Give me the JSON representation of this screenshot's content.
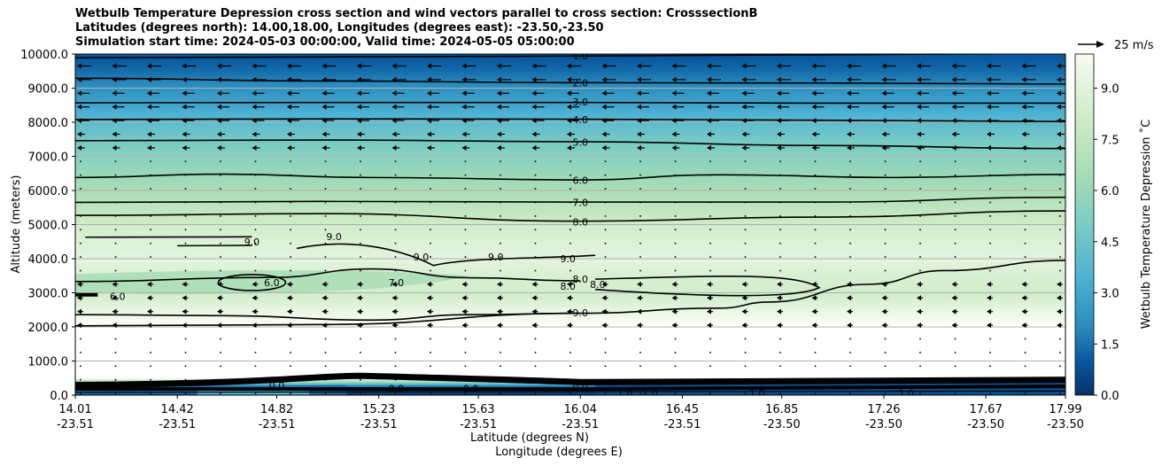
{
  "chart_data": {
    "type": "heatmap",
    "title_lines": [
      "Wetbulb Temperature Depression cross section and wind vectors parallel to cross section: CrosssectionB",
      "Latitudes (degrees north): 14.00,18.00, Longitudes (degrees east): -23.50,-23.50",
      "Simulation start time: 2024-05-03 00:00:00, Valid time: 2024-05-05 05:00:00"
    ],
    "ylabel": "Altitude (meters)",
    "xlabel": "Latitude (degrees N)",
    "xlabel2": "Longitude (degrees E)",
    "ylim": [
      0,
      10000
    ],
    "y_ticks": [
      0,
      1000,
      2000,
      3000,
      4000,
      5000,
      6000,
      7000,
      8000,
      9000,
      10000
    ],
    "y_tick_labels": [
      "0.0",
      "1000.0",
      "2000.0",
      "3000.0",
      "4000.0",
      "5000.0",
      "6000.0",
      "7000.0",
      "8000.0",
      "9000.0",
      "10000.0"
    ],
    "xlim": [
      14.01,
      17.99
    ],
    "x_ticks_lat": [
      "14.01",
      "14.42",
      "14.82",
      "15.23",
      "15.63",
      "16.04",
      "16.45",
      "16.85",
      "17.26",
      "17.67",
      "17.99"
    ],
    "x_ticks_lon": [
      "-23.51",
      "-23.51",
      "-23.51",
      "-23.51",
      "-23.51",
      "-23.51",
      "-23.51",
      "-23.50",
      "-23.50",
      "-23.50",
      "-23.50"
    ],
    "colorbar": {
      "label": "Wetbulb Temperature Depression ˚C",
      "range": [
        0,
        10
      ],
      "tick_values": [
        0,
        1.5,
        3,
        4.5,
        6,
        7.5,
        9
      ],
      "tick_labels": [
        "0.0",
        "1.5",
        "3.0",
        "4.5",
        "6.0",
        "7.5",
        "9.0"
      ]
    },
    "contour_levels": [
      1.0,
      2.0,
      3.0,
      4.0,
      5.0,
      6.0,
      7.0,
      8.0,
      9.0
    ],
    "contour_labels": [
      {
        "text": "1.0",
        "x": 16.04,
        "alt": 9950
      },
      {
        "text": "2.0",
        "x": 16.04,
        "alt": 9150
      },
      {
        "text": "3.0",
        "x": 16.04,
        "alt": 8600
      },
      {
        "text": "4.0",
        "x": 16.04,
        "alt": 8080
      },
      {
        "text": "5.0",
        "x": 16.04,
        "alt": 7420
      },
      {
        "text": "6.0",
        "x": 16.04,
        "alt": 6300
      },
      {
        "text": "7.0",
        "x": 16.04,
        "alt": 5650
      },
      {
        "text": "8.0",
        "x": 16.04,
        "alt": 5080
      },
      {
        "text": "9.0",
        "x": 16.04,
        "alt": 2420
      },
      {
        "text": "8.0",
        "x": 16.04,
        "alt": 3400
      },
      {
        "text": "9.0",
        "x": 14.72,
        "alt": 4500
      },
      {
        "text": "9.0",
        "x": 15.05,
        "alt": 4650
      },
      {
        "text": "9.0",
        "x": 15.4,
        "alt": 4050
      },
      {
        "text": "9.0",
        "x": 15.7,
        "alt": 4050
      },
      {
        "text": "9.0",
        "x": 15.99,
        "alt": 4000
      },
      {
        "text": "6.0",
        "x": 14.8,
        "alt": 3300
      },
      {
        "text": "7.0",
        "x": 15.3,
        "alt": 3300
      },
      {
        "text": "6.0",
        "x": 14.18,
        "alt": 2900
      },
      {
        "text": "8.0",
        "x": 15.99,
        "alt": 3200
      },
      {
        "text": "8.0",
        "x": 16.11,
        "alt": 3250
      },
      {
        "text": "1.0",
        "x": 16.22,
        "alt": 60
      },
      {
        "text": "1.0",
        "x": 16.32,
        "alt": 60
      },
      {
        "text": "1.0",
        "x": 16.75,
        "alt": 60
      },
      {
        "text": "1.0",
        "x": 17.35,
        "alt": 60
      },
      {
        "text": "0.0",
        "x": 15.3,
        "alt": 200
      },
      {
        "text": "0.0",
        "x": 15.6,
        "alt": 200
      },
      {
        "text": "0.0",
        "x": 16.04,
        "alt": 230
      },
      {
        "text": "0.0",
        "x": 14.82,
        "alt": 280
      }
    ],
    "depression_profile": [
      {
        "alt": 0,
        "value": 0.3
      },
      {
        "alt": 250,
        "value": 0.8
      },
      {
        "alt": 500,
        "value": 9.8
      },
      {
        "alt": 2000,
        "value": 9.8
      },
      {
        "alt": 2500,
        "value": 9.2
      },
      {
        "alt": 3000,
        "value": 8.3
      },
      {
        "alt": 3500,
        "value": 8.6
      },
      {
        "alt": 4000,
        "value": 9.1
      },
      {
        "alt": 4500,
        "value": 8.8
      },
      {
        "alt": 5000,
        "value": 8.2
      },
      {
        "alt": 5500,
        "value": 7.4
      },
      {
        "alt": 6000,
        "value": 6.6
      },
      {
        "alt": 6500,
        "value": 6.0
      },
      {
        "alt": 7000,
        "value": 5.4
      },
      {
        "alt": 7500,
        "value": 4.8
      },
      {
        "alt": 8000,
        "value": 4.0
      },
      {
        "alt": 8500,
        "value": 3.0
      },
      {
        "alt": 9000,
        "value": 2.2
      },
      {
        "alt": 9500,
        "value": 1.4
      },
      {
        "alt": 10000,
        "value": 0.9
      }
    ],
    "contour_lines": [
      {
        "level": "1.0",
        "points": [
          [
            14.01,
            9890
          ],
          [
            16.04,
            9940
          ],
          [
            17.99,
            10020
          ]
        ]
      },
      {
        "level": "2.0",
        "points": [
          [
            14.01,
            9290
          ],
          [
            15.0,
            9210
          ],
          [
            16.04,
            9160
          ],
          [
            17.0,
            9150
          ],
          [
            17.99,
            9120
          ]
        ]
      },
      {
        "level": "3.0",
        "points": [
          [
            14.01,
            8570
          ],
          [
            15.0,
            8580
          ],
          [
            16.04,
            8580
          ],
          [
            17.0,
            8560
          ],
          [
            17.99,
            8560
          ]
        ]
      },
      {
        "level": "4.0",
        "points": [
          [
            14.01,
            8080
          ],
          [
            15.0,
            8100
          ],
          [
            16.04,
            8090
          ],
          [
            17.0,
            8060
          ],
          [
            17.99,
            8020
          ]
        ]
      },
      {
        "level": "5.0",
        "points": [
          [
            14.01,
            7460
          ],
          [
            15.0,
            7480
          ],
          [
            16.04,
            7430
          ],
          [
            17.0,
            7320
          ],
          [
            17.99,
            7230
          ]
        ]
      },
      {
        "level": "6.0",
        "points": [
          [
            14.01,
            6380
          ],
          [
            14.6,
            6480
          ],
          [
            15.2,
            6380
          ],
          [
            16.04,
            6310
          ],
          [
            16.6,
            6460
          ],
          [
            17.3,
            6380
          ],
          [
            17.99,
            6470
          ]
        ]
      },
      {
        "level": "7.0",
        "points": [
          [
            14.01,
            5650
          ],
          [
            15.0,
            5680
          ],
          [
            16.04,
            5660
          ],
          [
            17.0,
            5660
          ],
          [
            17.99,
            5800
          ]
        ]
      },
      {
        "level": "8.0",
        "points": [
          [
            14.01,
            5270
          ],
          [
            15.0,
            5320
          ],
          [
            16.04,
            5100
          ],
          [
            17.0,
            5220
          ],
          [
            17.99,
            5400
          ]
        ]
      },
      {
        "level": "9.0",
        "points": [
          [
            14.01,
            2030
          ],
          [
            15.0,
            2070
          ],
          [
            16.04,
            2400
          ],
          [
            16.6,
            2550
          ],
          [
            16.8,
            2730
          ],
          [
            17.2,
            3250
          ],
          [
            17.5,
            3650
          ],
          [
            17.99,
            3950
          ]
        ]
      },
      {
        "level": "9.0",
        "points": [
          [
            14.01,
            2360
          ],
          [
            14.6,
            2330
          ],
          [
            15.2,
            2200
          ],
          [
            15.6,
            2360
          ],
          [
            16.04,
            2400
          ]
        ]
      },
      {
        "level": "8.0",
        "points": [
          [
            14.01,
            3330
          ],
          [
            14.8,
            3450
          ],
          [
            15.2,
            3700
          ],
          [
            15.6,
            3440
          ],
          [
            16.04,
            3350
          ]
        ]
      }
    ]
  }
}
